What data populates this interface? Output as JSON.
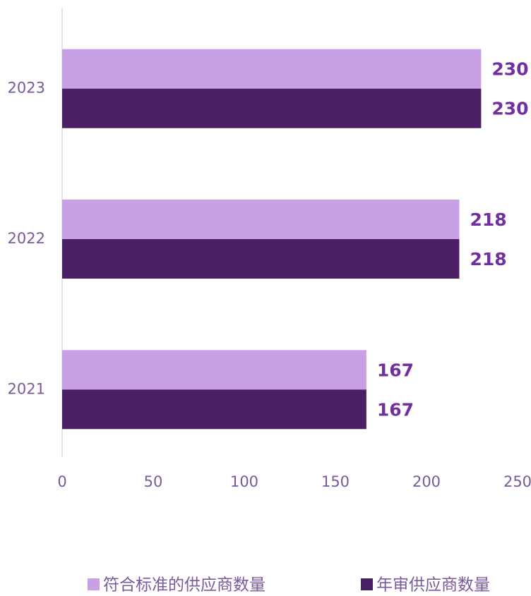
{
  "chart_data": {
    "type": "bar",
    "orientation": "horizontal",
    "categories": [
      "2021",
      "2022",
      "2023"
    ],
    "series": [
      {
        "name": "符合标准的供应商数量",
        "color": "#c8a0e4",
        "values": [
          167,
          218,
          230
        ]
      },
      {
        "name": "年审供应商数量",
        "color": "#4a1f63",
        "values": [
          167,
          218,
          230
        ]
      }
    ],
    "xlim": [
      0,
      250
    ],
    "xticks": [
      0,
      50,
      100,
      150,
      200,
      250
    ],
    "legend": "bottom"
  }
}
